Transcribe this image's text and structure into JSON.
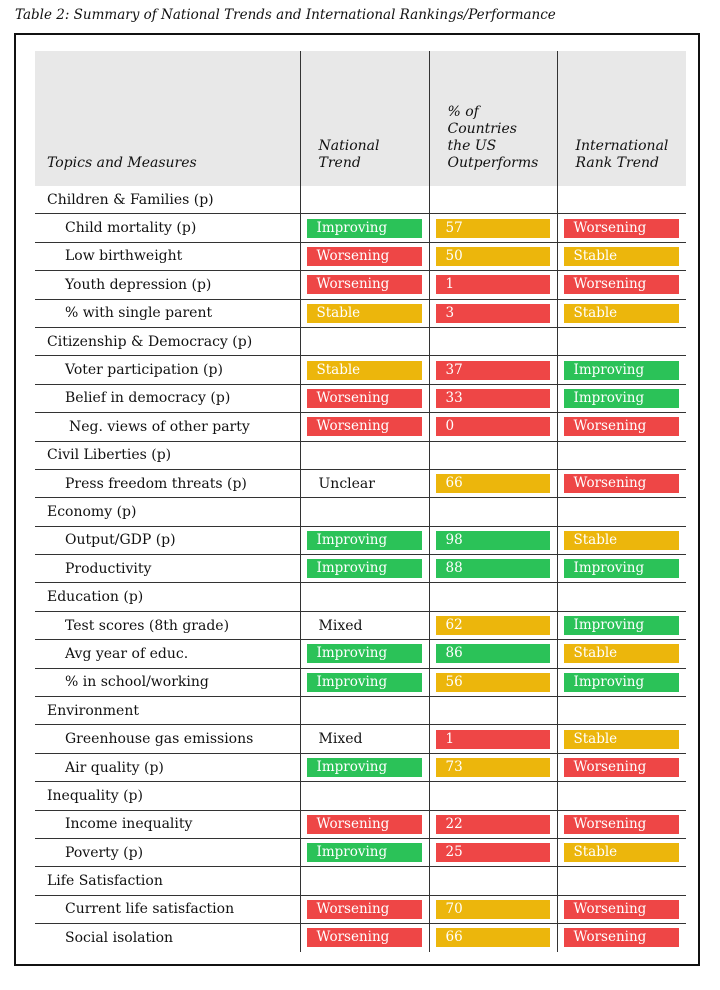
{
  "caption": "Table 2: Summary of National Trends and International Rankings/Performance",
  "headers": {
    "topics": "Topics and Measures",
    "national_trend": "National Trend",
    "pct_outperforms": "% of Countries the US Outperforms",
    "intl_rank_trend": "International Rank Trend"
  },
  "colors": {
    "green": "#2bc258",
    "red": "#ee4646",
    "yellow": "#ecb60c"
  },
  "rows": [
    {
      "kind": "topic",
      "label": "Children & Families (p)"
    },
    {
      "kind": "measure",
      "label": "Child mortality (p)",
      "trend": "Improving",
      "trend_color": "green",
      "pct": "57",
      "pct_color": "yellow",
      "rank": "Worsening",
      "rank_color": "red"
    },
    {
      "kind": "measure",
      "label": "Low birthweight",
      "trend": "Worsening",
      "trend_color": "red",
      "pct": "50",
      "pct_color": "yellow",
      "rank": "Stable",
      "rank_color": "yellow"
    },
    {
      "kind": "measure",
      "label": "Youth depression (p)",
      "trend": "Worsening",
      "trend_color": "red",
      "pct": "1",
      "pct_color": "red",
      "rank": "Worsening",
      "rank_color": "red"
    },
    {
      "kind": "measure",
      "label": "% with single parent",
      "trend": "Stable",
      "trend_color": "yellow",
      "pct": "3",
      "pct_color": "red",
      "rank": "Stable",
      "rank_color": "yellow"
    },
    {
      "kind": "topic",
      "label": "Citizenship & Democracy (p)"
    },
    {
      "kind": "measure",
      "label": "Voter participation (p)",
      "trend": "Stable",
      "trend_color": "yellow",
      "pct": "37",
      "pct_color": "red",
      "rank": "Improving",
      "rank_color": "green"
    },
    {
      "kind": "measure",
      "label": "Belief in democracy (p)",
      "trend": "Worsening",
      "trend_color": "red",
      "pct": "33",
      "pct_color": "red",
      "rank": "Improving",
      "rank_color": "green"
    },
    {
      "kind": "measure",
      "label": "Neg. views of other party",
      "trend": "Worsening",
      "trend_color": "red",
      "pct": "0",
      "pct_color": "red",
      "rank": "Worsening",
      "rank_color": "red",
      "extra_indent": true
    },
    {
      "kind": "topic",
      "label": "Civil Liberties (p)"
    },
    {
      "kind": "measure",
      "label": "Press freedom threats (p)",
      "trend": "Unclear",
      "trend_color": "none",
      "pct": "66",
      "pct_color": "yellow",
      "rank": "Worsening",
      "rank_color": "red"
    },
    {
      "kind": "topic",
      "label": "Economy (p)"
    },
    {
      "kind": "measure",
      "label": "Output/GDP (p)",
      "trend": "Improving",
      "trend_color": "green",
      "pct": "98",
      "pct_color": "green",
      "rank": "Stable",
      "rank_color": "yellow"
    },
    {
      "kind": "measure",
      "label": "Productivity",
      "trend": "Improving",
      "trend_color": "green",
      "pct": "88",
      "pct_color": "green",
      "rank": "Improving",
      "rank_color": "green"
    },
    {
      "kind": "topic",
      "label": "Education (p)"
    },
    {
      "kind": "measure",
      "label": "Test scores (8th grade)",
      "trend": "Mixed",
      "trend_color": "none",
      "pct": "62",
      "pct_color": "yellow",
      "rank": "Improving",
      "rank_color": "green"
    },
    {
      "kind": "measure",
      "label": "Avg year of educ.",
      "trend": "Improving",
      "trend_color": "green",
      "pct": "86",
      "pct_color": "green",
      "rank": "Stable",
      "rank_color": "yellow"
    },
    {
      "kind": "measure",
      "label": "% in school/working",
      "trend": "Improving",
      "trend_color": "green",
      "pct": "56",
      "pct_color": "yellow",
      "rank": "Improving",
      "rank_color": "green"
    },
    {
      "kind": "topic",
      "label": "Environment"
    },
    {
      "kind": "measure",
      "label": "Greenhouse gas emissions",
      "trend": "Mixed",
      "trend_color": "none",
      "pct": "1",
      "pct_color": "red",
      "rank": "Stable",
      "rank_color": "yellow"
    },
    {
      "kind": "measure",
      "label": "Air quality (p)",
      "trend": "Improving",
      "trend_color": "green",
      "pct": "73",
      "pct_color": "yellow",
      "rank": "Worsening",
      "rank_color": "red"
    },
    {
      "kind": "topic",
      "label": "Inequality (p)"
    },
    {
      "kind": "measure",
      "label": "Income inequality",
      "trend": "Worsening",
      "trend_color": "red",
      "pct": "22",
      "pct_color": "red",
      "rank": "Worsening",
      "rank_color": "red"
    },
    {
      "kind": "measure",
      "label": "Poverty (p)",
      "trend": "Improving",
      "trend_color": "green",
      "pct": "25",
      "pct_color": "red",
      "rank": "Stable",
      "rank_color": "yellow"
    },
    {
      "kind": "topic",
      "label": "Life Satisfaction"
    },
    {
      "kind": "measure",
      "label": "Current life satisfaction",
      "trend": "Worsening",
      "trend_color": "red",
      "pct": "70",
      "pct_color": "yellow",
      "rank": "Worsening",
      "rank_color": "red"
    },
    {
      "kind": "measure",
      "label": "Social isolation",
      "trend": "Worsening",
      "trend_color": "red",
      "pct": "66",
      "pct_color": "yellow",
      "rank": "Worsening",
      "rank_color": "red"
    }
  ]
}
